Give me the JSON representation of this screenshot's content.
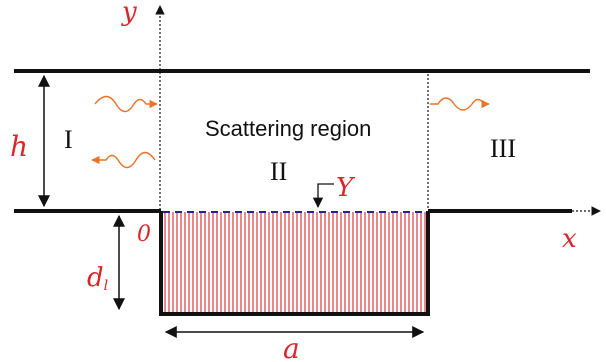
{
  "axes": {
    "x_label": "x",
    "y_label": "y",
    "origin_label": "0"
  },
  "dimensions": {
    "height_label": "h",
    "depth_label": "d",
    "depth_subscript": "l",
    "width_label": "a",
    "interface_label": "Y"
  },
  "regions": {
    "left": "I",
    "middle": "II",
    "right": "III",
    "scattering": "Scattering region"
  },
  "colors": {
    "wall": "#111111",
    "accent": "#d9262b",
    "wave": "#e8742a",
    "interface": "#1a2a8c"
  }
}
